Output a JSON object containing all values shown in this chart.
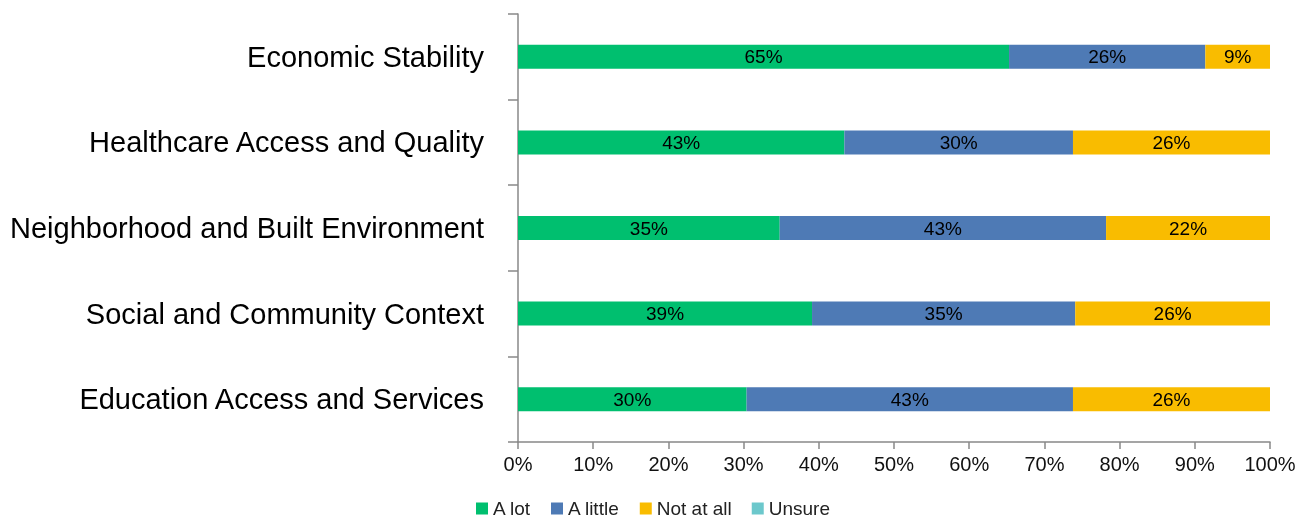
{
  "chart_data": {
    "type": "bar",
    "orientation": "horizontal",
    "stacked": true,
    "categories": [
      "Economic Stability",
      "Healthcare Access and Quality",
      "Neighborhood and Built Environment",
      "Social and Community Context",
      "Education Access and Services"
    ],
    "series": [
      {
        "name": "A lot",
        "color": "#00bf6f",
        "values": [
          65.3,
          43.4,
          34.8,
          39.1,
          30.4
        ],
        "value_labels": [
          "65%",
          "43%",
          "35%",
          "39%",
          "30%"
        ]
      },
      {
        "name": "A little",
        "color": "#4e7ab5",
        "values": [
          26.1,
          30.4,
          43.4,
          35.0,
          43.4
        ],
        "value_labels": [
          "26%",
          "30%",
          "43%",
          "35%",
          "43%"
        ]
      },
      {
        "name": "Not at all",
        "color": "#f9bc00",
        "values": [
          8.6,
          26.2,
          21.8,
          25.9,
          26.2
        ],
        "value_labels": [
          "9%",
          "26%",
          "22%",
          "26%",
          "26%"
        ]
      },
      {
        "name": "Unsure",
        "color": "#6cc8cc",
        "values": [
          null,
          null,
          null,
          null,
          null
        ]
      }
    ],
    "xlim": [
      0,
      100
    ],
    "xticks": [
      {
        "value": 0,
        "label": "0%"
      },
      {
        "value": 10,
        "label": "10%"
      },
      {
        "value": 20,
        "label": "20%"
      },
      {
        "value": 30,
        "label": "30%"
      },
      {
        "value": 40,
        "label": "40%"
      },
      {
        "value": 50,
        "label": "50%"
      },
      {
        "value": 60,
        "label": "60%"
      },
      {
        "value": 70,
        "label": "70%"
      },
      {
        "value": 80,
        "label": "80%"
      },
      {
        "value": 90,
        "label": "90%"
      },
      {
        "value": 100,
        "label": "100%"
      }
    ],
    "legend": "bottom"
  }
}
